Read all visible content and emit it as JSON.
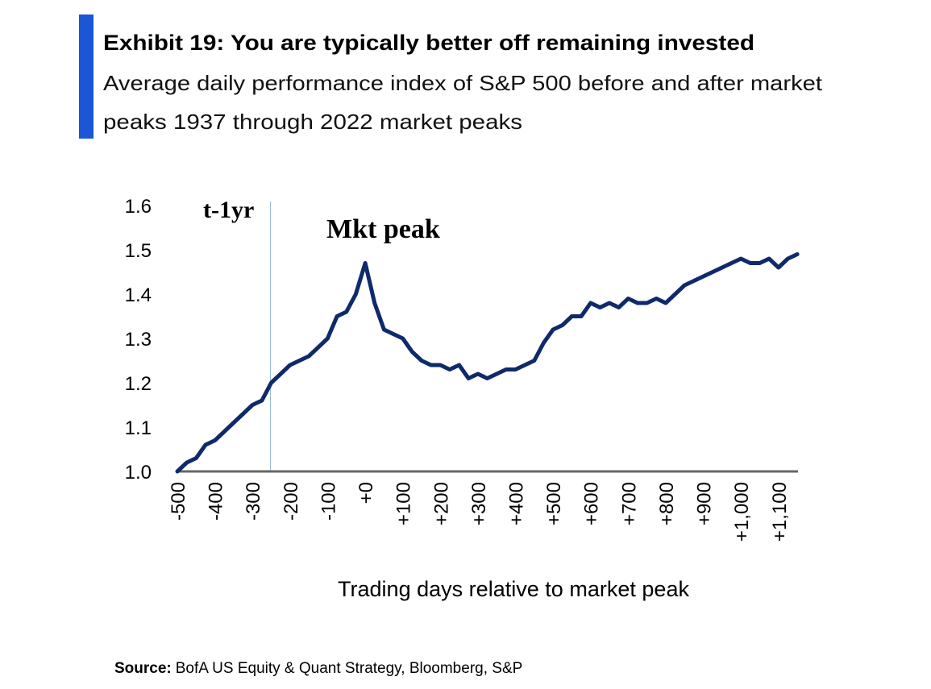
{
  "chart_data": {
    "type": "line",
    "title": "Exhibit 19: You are typically better off remaining invested",
    "subtitle": [
      "Average daily performance index of S&P 500 before and after market",
      "peaks 1937 through 2022 market peaks"
    ],
    "xlabel": "Trading days relative to market peak",
    "annotations": [
      "t-1yr",
      "Mkt peak"
    ],
    "vline": -252,
    "source_label": "Source:",
    "source": "BofA US Equity & Quant Strategy, Bloomberg, S&P",
    "x": [
      -500,
      -475,
      -450,
      -425,
      -400,
      -375,
      -350,
      -325,
      -300,
      -275,
      -250,
      -225,
      -200,
      -175,
      -150,
      -125,
      -100,
      -75,
      -50,
      -25,
      0,
      25,
      50,
      75,
      100,
      125,
      150,
      175,
      200,
      225,
      250,
      275,
      300,
      325,
      350,
      375,
      400,
      425,
      450,
      475,
      500,
      525,
      550,
      575,
      600,
      625,
      650,
      675,
      700,
      725,
      750,
      775,
      800,
      825,
      850,
      875,
      900,
      925,
      950,
      975,
      1000,
      1025,
      1050,
      1075,
      1100,
      1125,
      1150
    ],
    "series": [
      {
        "color": "#0f2a6b",
        "values": [
          1.0,
          1.02,
          1.03,
          1.06,
          1.07,
          1.09,
          1.11,
          1.13,
          1.15,
          1.16,
          1.2,
          1.22,
          1.24,
          1.25,
          1.26,
          1.28,
          1.3,
          1.35,
          1.36,
          1.4,
          1.47,
          1.38,
          1.32,
          1.31,
          1.3,
          1.27,
          1.25,
          1.24,
          1.24,
          1.23,
          1.24,
          1.21,
          1.22,
          1.21,
          1.22,
          1.23,
          1.23,
          1.24,
          1.25,
          1.29,
          1.32,
          1.33,
          1.35,
          1.35,
          1.38,
          1.37,
          1.38,
          1.37,
          1.39,
          1.38,
          1.38,
          1.39,
          1.38,
          1.4,
          1.42,
          1.43,
          1.44,
          1.45,
          1.46,
          1.47,
          1.48,
          1.47,
          1.47,
          1.48,
          1.46,
          1.48,
          1.49
        ]
      }
    ],
    "xlim": [
      -500,
      1152
    ],
    "ylim": [
      1.0,
      1.6
    ],
    "xticks": [
      -500,
      -400,
      -300,
      -200,
      -100,
      {
        "value": 0,
        "label": "+0"
      },
      {
        "value": 100,
        "label": "+100"
      },
      {
        "value": 200,
        "label": "+200"
      },
      {
        "value": 300,
        "label": "+300"
      },
      {
        "value": 400,
        "label": "+400"
      },
      {
        "value": 500,
        "label": "+500"
      },
      {
        "value": 600,
        "label": "+600"
      },
      {
        "value": 700,
        "label": "+700"
      },
      {
        "value": 800,
        "label": "+800"
      },
      {
        "value": 900,
        "label": "+900"
      },
      {
        "value": 1000,
        "label": "+1,000"
      },
      {
        "value": 1100,
        "label": "+1,100"
      }
    ],
    "yticks": [
      {
        "value": 1,
        "label": "1.0"
      },
      1.1,
      1.2,
      1.3,
      1.4,
      1.5,
      1.6
    ]
  }
}
